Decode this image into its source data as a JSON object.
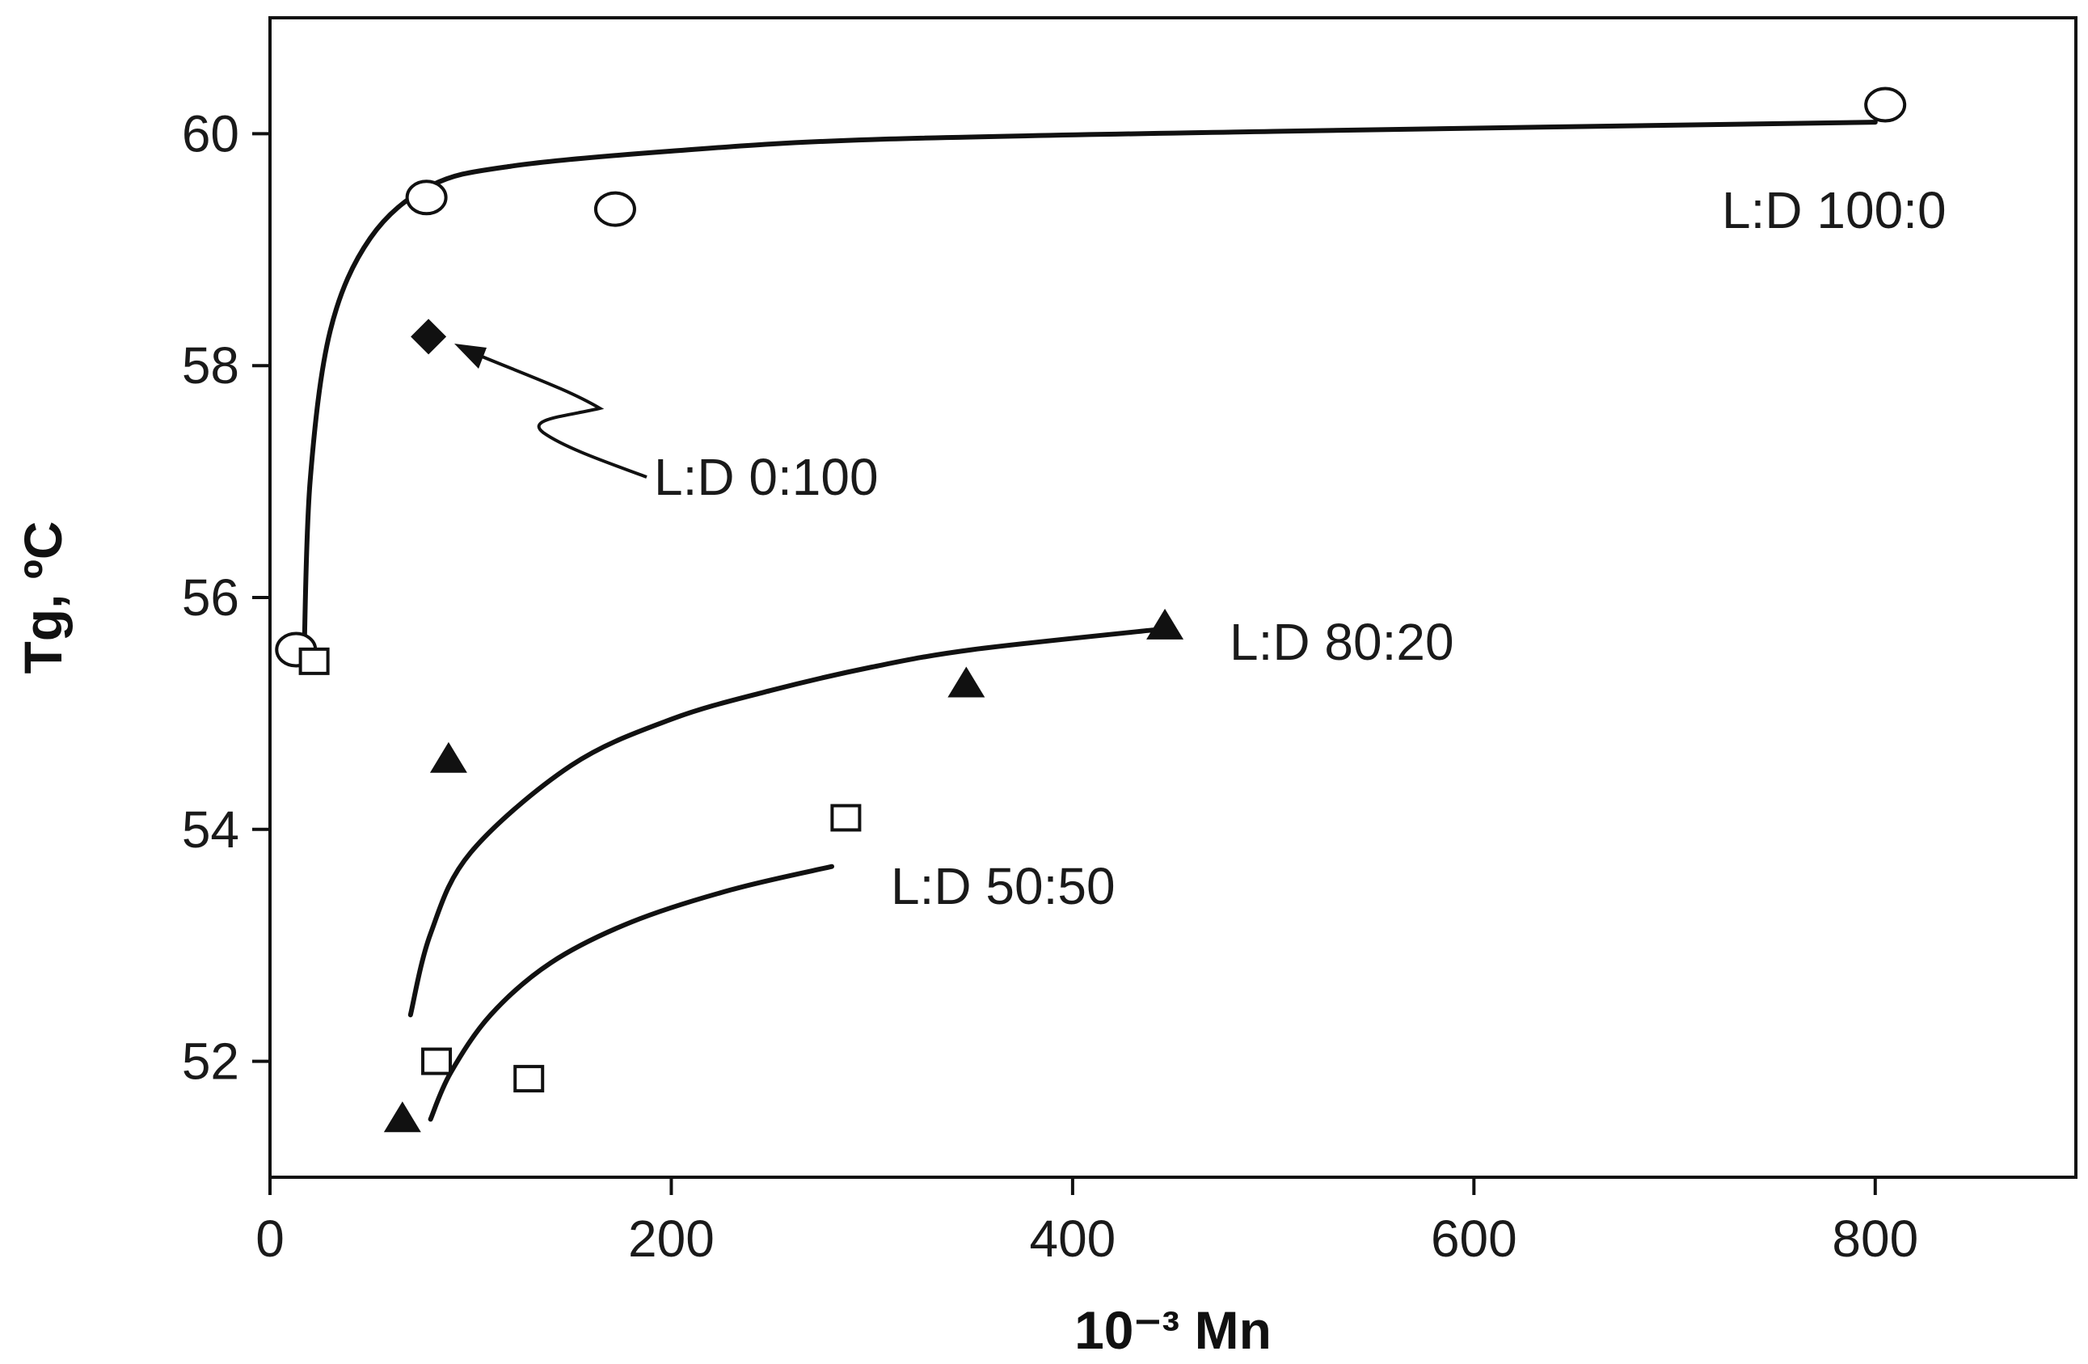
{
  "chart_data": {
    "type": "scatter",
    "xlabel": "10⁻³ Mn",
    "ylabel": "Tg, ºC",
    "xlim": [
      0,
      900
    ],
    "ylim": [
      51,
      61
    ],
    "xticks": [
      0,
      200,
      400,
      600,
      800
    ],
    "yticks": [
      52,
      54,
      56,
      58,
      60
    ],
    "grid": false,
    "legend": "none",
    "series": [
      {
        "name": "L:D 100:0",
        "marker": "open-circle",
        "points": [
          [
            13,
            55.55
          ],
          [
            78,
            59.45
          ],
          [
            172,
            59.35
          ],
          [
            805,
            60.25
          ]
        ],
        "curve": [
          [
            17,
            55.5
          ],
          [
            20,
            57.0
          ],
          [
            30,
            58.3
          ],
          [
            50,
            59.1
          ],
          [
            80,
            59.55
          ],
          [
            120,
            59.72
          ],
          [
            200,
            59.85
          ],
          [
            300,
            59.95
          ],
          [
            500,
            60.02
          ],
          [
            800,
            60.1
          ]
        ]
      },
      {
        "name": "L:D 0:100",
        "marker": "filled-diamond",
        "points": [
          [
            79,
            58.25
          ]
        ]
      },
      {
        "name": "L:D 80:20",
        "marker": "filled-triangle",
        "points": [
          [
            66,
            51.5
          ],
          [
            89,
            54.6
          ],
          [
            347,
            55.25
          ],
          [
            446,
            55.75
          ]
        ],
        "curve": [
          [
            70,
            52.4
          ],
          [
            80,
            53.1
          ],
          [
            100,
            53.8
          ],
          [
            150,
            54.55
          ],
          [
            200,
            54.95
          ],
          [
            250,
            55.2
          ],
          [
            300,
            55.4
          ],
          [
            350,
            55.55
          ],
          [
            440,
            55.72
          ]
        ]
      },
      {
        "name": "L:D 50:50",
        "marker": "open-square",
        "points": [
          [
            22,
            55.45
          ],
          [
            83,
            52.0
          ],
          [
            129,
            51.85
          ],
          [
            287,
            54.1
          ]
        ],
        "curve": [
          [
            80,
            51.5
          ],
          [
            90,
            51.9
          ],
          [
            110,
            52.4
          ],
          [
            140,
            52.85
          ],
          [
            180,
            53.2
          ],
          [
            230,
            53.48
          ],
          [
            280,
            53.68
          ]
        ]
      }
    ],
    "annotations": [
      {
        "text": "L:D 100:0",
        "series": 0
      },
      {
        "text": "L:D 0:100",
        "series": 1
      },
      {
        "text": "L:D 80:20",
        "series": 2
      },
      {
        "text": "L:D 50:50",
        "series": 3
      }
    ],
    "colors": {
      "ink": "#111111",
      "background": "#ffffff"
    }
  }
}
